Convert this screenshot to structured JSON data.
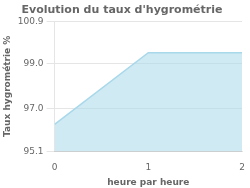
{
  "chart_data": {
    "type": "area",
    "title": "Evolution du taux d'hygrométrie",
    "xlabel": "heure par heure",
    "ylabel": "Taux hygrométrie %",
    "x": [
      0,
      1,
      2
    ],
    "values": [
      96.3,
      99.5,
      99.5
    ],
    "color": "#a8d8ea",
    "xlim": [
      0,
      2
    ],
    "xticks": [
      0,
      1,
      2
    ],
    "ylim": [
      95.1,
      100.9
    ],
    "yticks": [
      95.1,
      {
        "value": 97.0,
        "label": "97.0"
      },
      {
        "value": 99.0,
        "label": "99.0"
      },
      100.9
    ],
    "grid": "y"
  }
}
